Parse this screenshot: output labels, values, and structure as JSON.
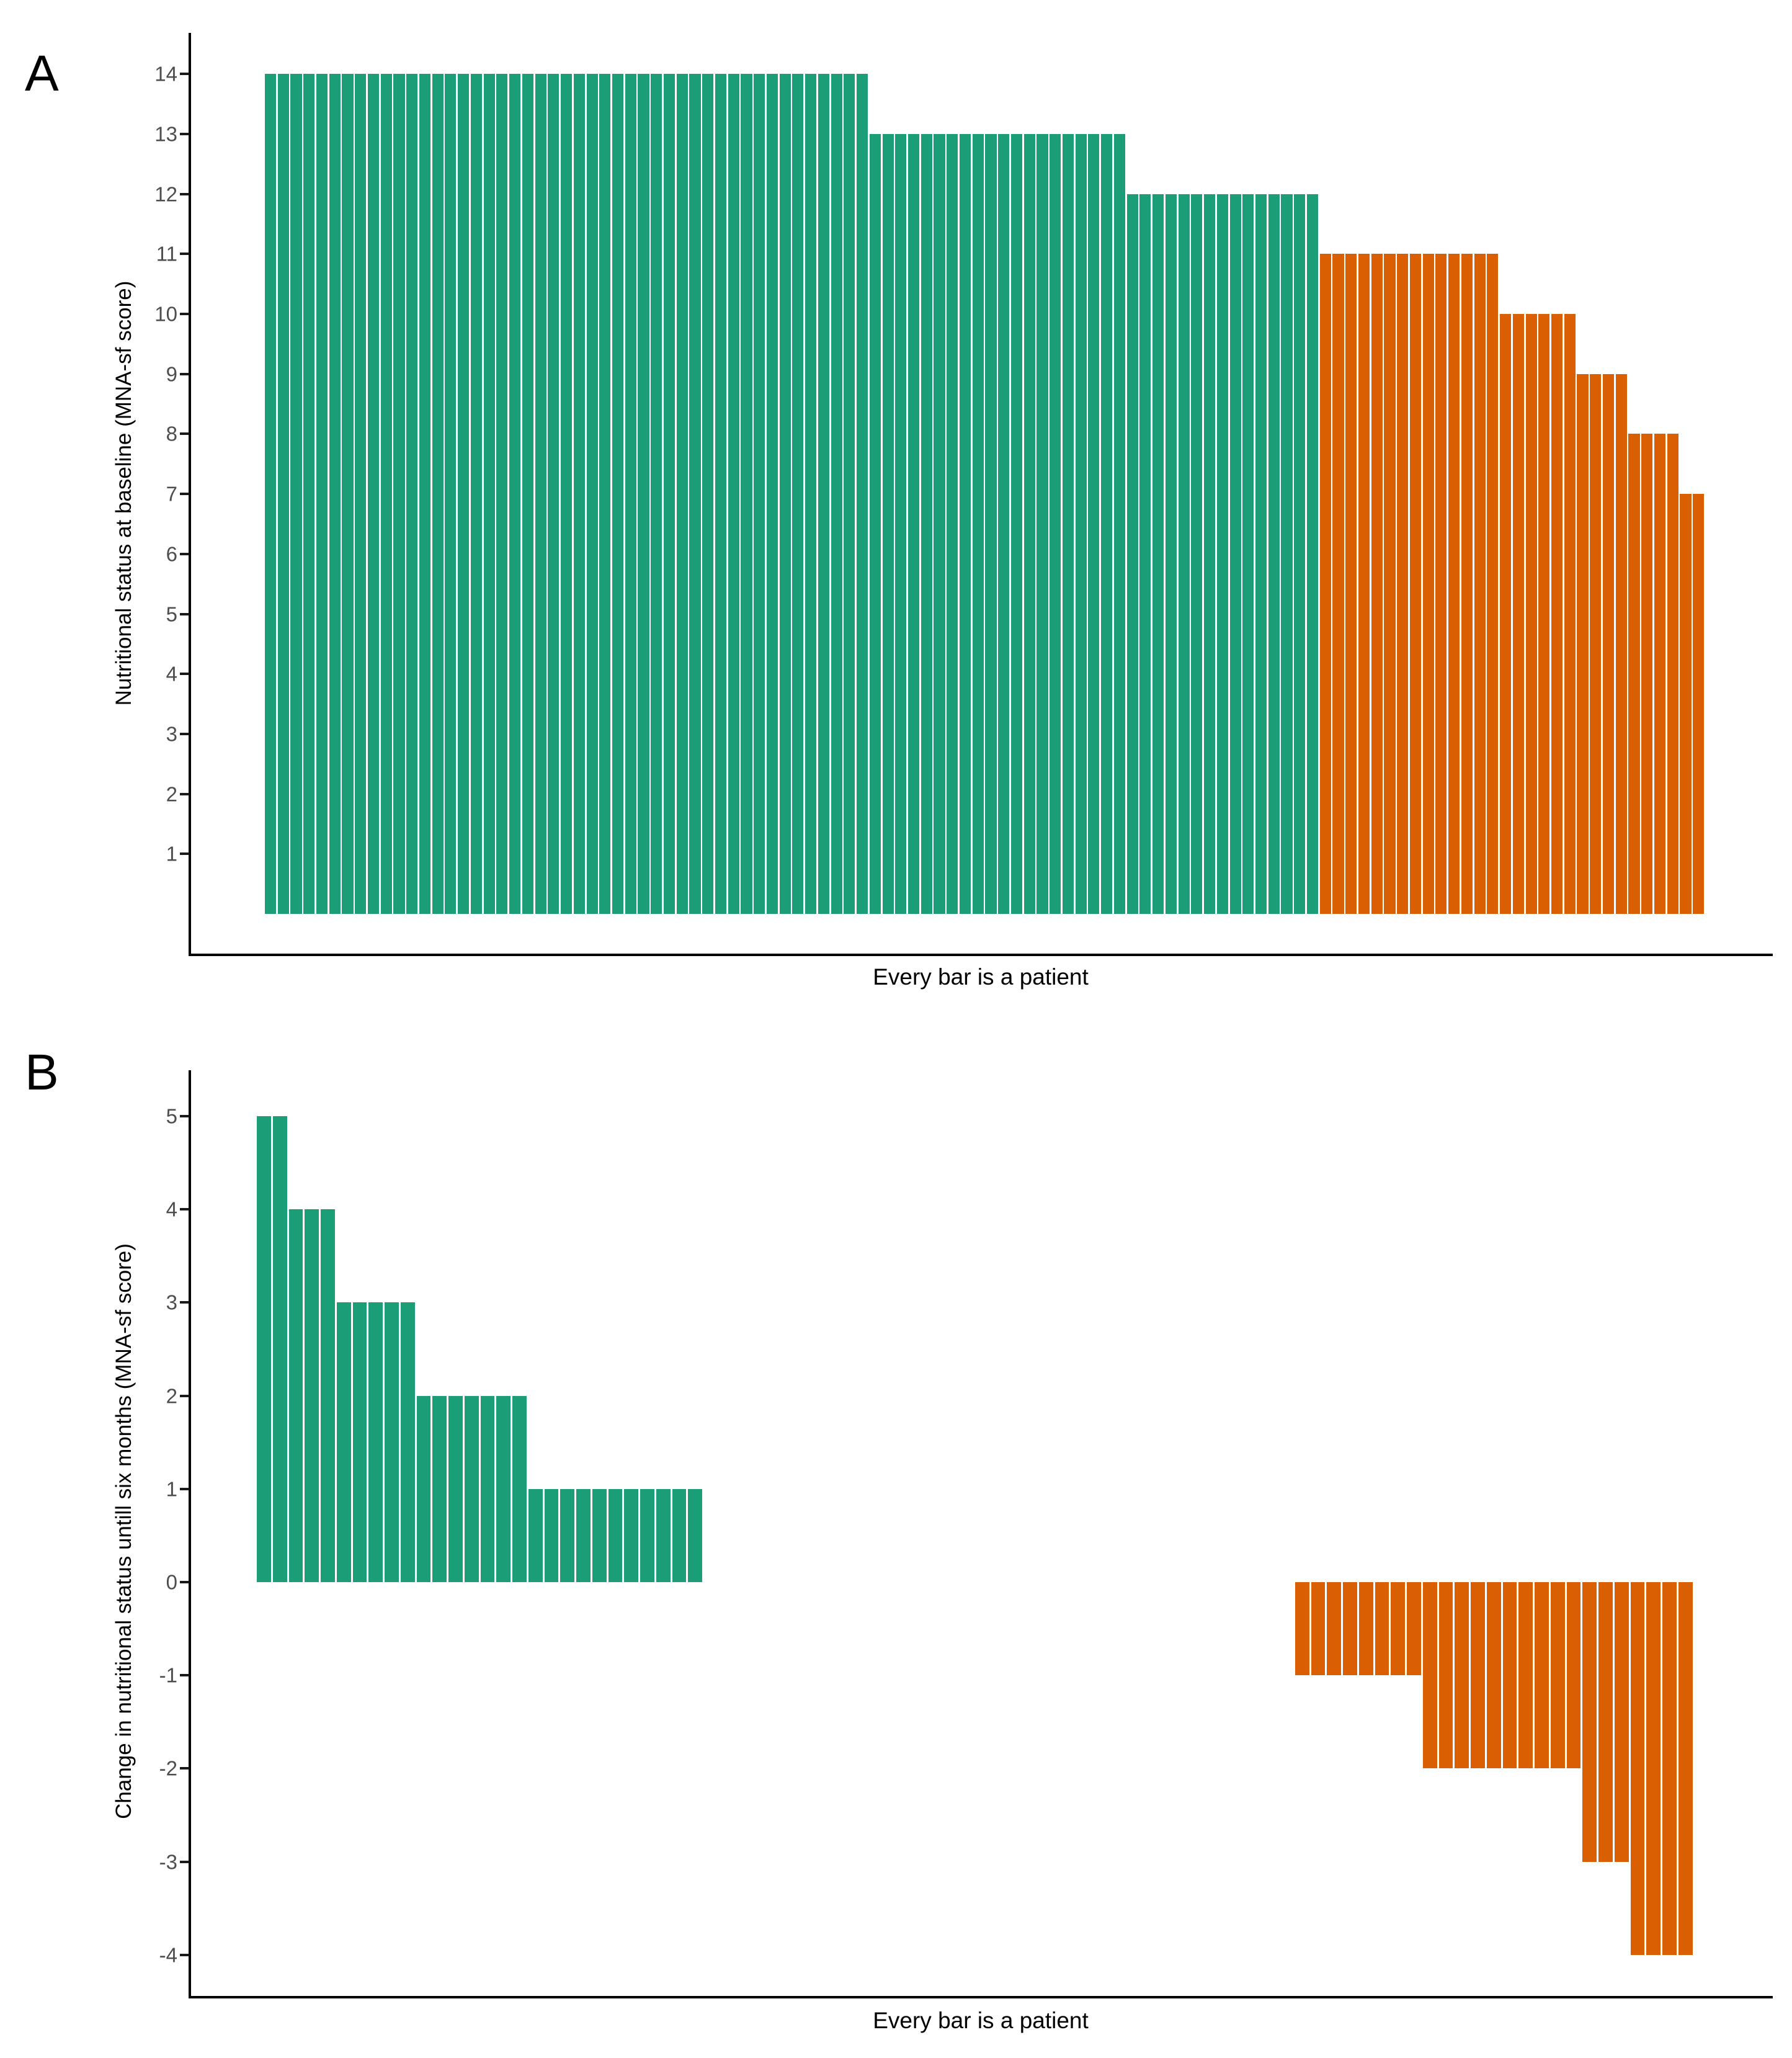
{
  "figure": {
    "background": "#ffffff",
    "colors": {
      "green": "#1B9E77",
      "orange": "#D95F02",
      "axis": "#000000",
      "tick_text": "#4d4d4d"
    }
  },
  "panels": [
    {
      "id": "A",
      "letter": "A",
      "y_axis_title": "Nutritional status at baseline (MNA-sf score)",
      "x_axis_title": "Every bar is a patient",
      "y_ticks": [
        14,
        13,
        12,
        11,
        10,
        9,
        8,
        7,
        6,
        5,
        4,
        3,
        2,
        1
      ]
    },
    {
      "id": "B",
      "letter": "B",
      "y_axis_title": "Change in nutritional status untill six months (MNA-sf score)",
      "x_axis_title": "Every bar is a patient",
      "y_ticks": [
        5,
        4,
        3,
        2,
        1,
        0,
        -1,
        -2,
        -3,
        -4
      ]
    }
  ],
  "chart_data": [
    {
      "type": "bar",
      "panel": "A",
      "title": "",
      "xlabel": "Every bar is a patient",
      "ylabel": "Nutritional status at baseline (MNA-sf score)",
      "y_ticks": [
        1,
        2,
        3,
        4,
        5,
        6,
        7,
        8,
        9,
        10,
        11,
        12,
        13,
        14
      ],
      "ylim": [
        0,
        14.7
      ],
      "grid": false,
      "legend": "none",
      "n_bars": 112,
      "bar_unit": "one bar per patient, sorted by descending baseline MNA-sf score",
      "series": [
        {
          "name": "green",
          "color": "#1B9E77",
          "runs": [
            {
              "value": 14,
              "count": 47
            },
            {
              "value": 13,
              "count": 20
            },
            {
              "value": 12,
              "count": 15
            }
          ]
        },
        {
          "name": "orange",
          "color": "#D95F02",
          "runs": [
            {
              "value": 11,
              "count": 14
            },
            {
              "value": 10,
              "count": 6
            },
            {
              "value": 9,
              "count": 4
            },
            {
              "value": 8,
              "count": 4
            },
            {
              "value": 7,
              "count": 2
            }
          ]
        }
      ]
    },
    {
      "type": "bar",
      "panel": "B",
      "title": "",
      "xlabel": "Every bar is a patient",
      "ylabel": "Change in nutritional status untill six months (MNA-sf score)",
      "y_ticks": [
        5,
        4,
        3,
        2,
        1,
        0,
        -1,
        -2,
        -3,
        -4
      ],
      "ylim": [
        -4.6,
        5.6
      ],
      "grid": false,
      "legend": "none",
      "n_bars": 90,
      "bar_unit": "one bar per patient, sorted by descending change in MNA-sf score; zero-change patients form the empty middle gap",
      "series": [
        {
          "name": "green",
          "color": "#1B9E77",
          "runs": [
            {
              "value": 5,
              "count": 2
            },
            {
              "value": 4,
              "count": 3
            },
            {
              "value": 3,
              "count": 5
            },
            {
              "value": 2,
              "count": 7
            },
            {
              "value": 1,
              "count": 11
            }
          ]
        },
        {
          "name": "no-change",
          "color": null,
          "runs": [
            {
              "value": 0,
              "count": 37
            }
          ]
        },
        {
          "name": "orange",
          "color": "#D95F02",
          "runs": [
            {
              "value": -1,
              "count": 8
            },
            {
              "value": -2,
              "count": 10
            },
            {
              "value": -3,
              "count": 3
            },
            {
              "value": -4,
              "count": 4
            }
          ]
        }
      ]
    }
  ]
}
